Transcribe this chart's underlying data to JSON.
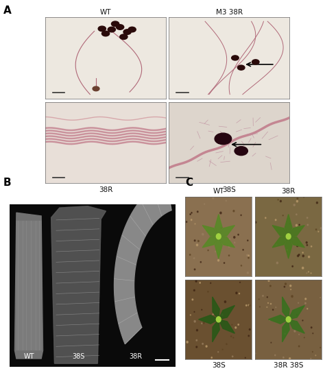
{
  "panel_A_label": "A",
  "panel_B_label": "B",
  "panel_C_label": "C",
  "panel_A_sub_labels_top": [
    "WT",
    "M3 38R"
  ],
  "panel_A_sub_labels_bottom": [
    "38R",
    "38S"
  ],
  "panel_B_sub_labels": [
    "WT",
    "38S",
    "38R"
  ],
  "panel_C_sub_labels_top": [
    "WT",
    "38R"
  ],
  "panel_C_sub_labels_bottom": [
    "38S",
    "38R 38S"
  ],
  "bg_color": "#ffffff",
  "panel_label_fontsize": 11,
  "sub_label_fontsize": 7.5,
  "A_img_bg": "#ede5de",
  "A_img_bg2": "#ddd5cc",
  "B_bg": "#0a0a0a",
  "C_soil1": "#8a7050",
  "C_soil2": "#7a6040",
  "C_soil3": "#6a5030",
  "C_soil4": "#786040",
  "arrow_color": "#000000"
}
